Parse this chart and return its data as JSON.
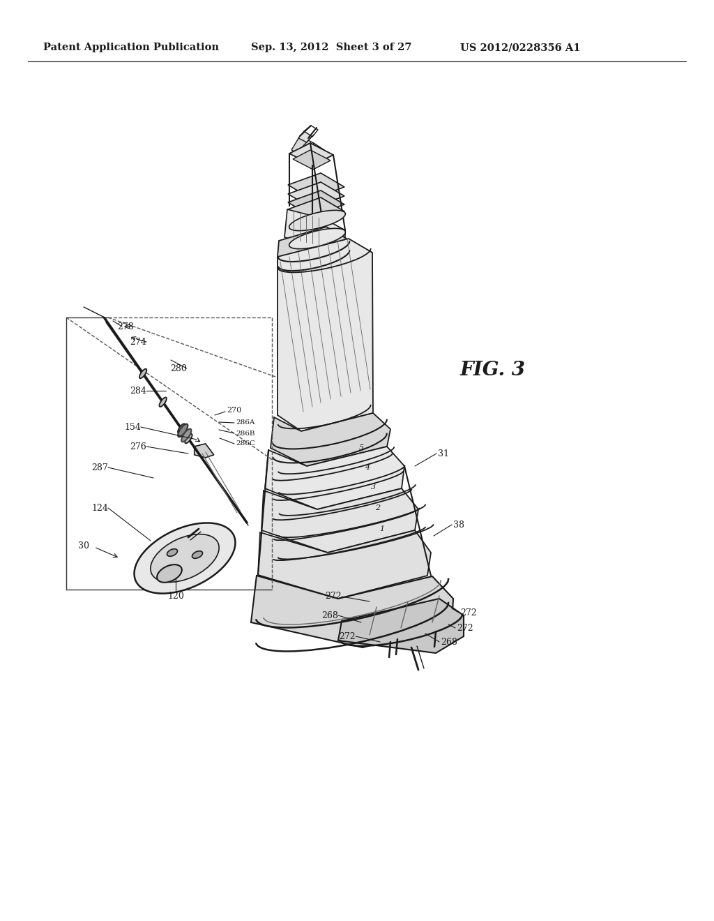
{
  "background_color": "#ffffff",
  "header_left": "Patent Application Publication",
  "header_center": "Sep. 13, 2012  Sheet 3 of 27",
  "header_right": "US 2012/0228356 A1",
  "fig_label": "FIG. 3",
  "header_fontsize": 10.5,
  "fig_label_fontsize": 20,
  "line_color": "#1a1a1a",
  "light_gray": "#e8e8e8",
  "mid_gray": "#c0c0c0",
  "dark_gray": "#888888"
}
